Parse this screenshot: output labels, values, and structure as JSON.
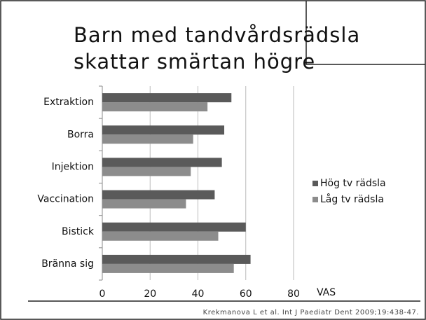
{
  "chart_data": {
    "type": "bar",
    "orientation": "horizontal",
    "title": [
      "Barn med tandvårdsrädsla",
      "skattar smärtan högre"
    ],
    "categories": [
      "Extraktion",
      "Borra",
      "Injektion",
      "Vaccination",
      "Bistick",
      "Bränna sig"
    ],
    "series": [
      {
        "name": "Hög tv rädsla",
        "color": "#5a5a5a",
        "values": [
          54,
          51,
          50,
          47,
          60,
          62
        ]
      },
      {
        "name": "Låg tv rädsla",
        "color": "#8c8c8c",
        "values": [
          44,
          38,
          37,
          35,
          48.5,
          55
        ]
      }
    ],
    "xlim": [
      0,
      80
    ],
    "xticks": [
      0,
      20,
      40,
      60,
      80
    ],
    "grid": true,
    "xlabel": "VAS",
    "legend": "right",
    "source": "Krekmanova L et al. Int J Paediatr Dent 2009;19:438-47."
  }
}
